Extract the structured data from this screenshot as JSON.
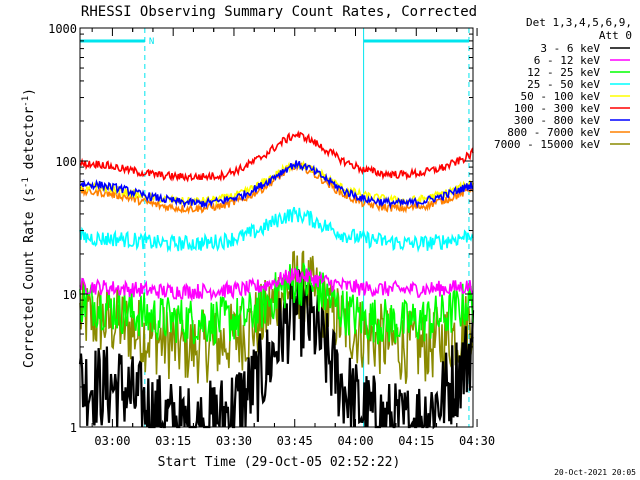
{
  "chart_data": {
    "type": "line",
    "title": "RHESSI Observing Summary Count Rates, Corrected",
    "xlabel": "Start Time (29-Oct-05 02:52:22)",
    "ylabel_main": "Corrected Count Rate (s",
    "ylabel_sup1": "-1",
    "ylabel_mid": " detector",
    "ylabel_sup2": "-1",
    "ylabel_end": ")",
    "yscale": "log",
    "ylim": [
      1,
      1000
    ],
    "xlim_min": [
      0,
      97
    ],
    "yticks": [
      "1",
      "10",
      "100",
      "1000"
    ],
    "xticks": [
      {
        "label": "03:00",
        "min": 8
      },
      {
        "label": "03:15",
        "min": 23
      },
      {
        "label": "03:30",
        "min": 38
      },
      {
        "label": "03:45",
        "min": 53
      },
      {
        "label": "04:00",
        "min": 68
      },
      {
        "label": "04:15",
        "min": 83
      },
      {
        "label": "04:30",
        "min": 98
      }
    ],
    "legend_header": [
      "Det 1,3,4,5,6,9,",
      "Att 0"
    ],
    "legend_position": "right",
    "annotations": {
      "night_markers": [
        {
          "start_min": 0,
          "end_min": 16
        },
        {
          "start_min": 70,
          "end_min": 96
        }
      ],
      "flag_label": "N",
      "dashed_lines_min": [
        16,
        96
      ],
      "solid_lines_min": [
        0,
        70
      ]
    },
    "series": [
      {
        "name": "3 - 6 keV",
        "color": "#000000",
        "x": [
          0,
          5,
          10,
          15,
          20,
          25,
          30,
          35,
          40,
          45,
          48,
          50,
          53,
          55,
          58,
          60,
          63,
          65,
          70,
          75,
          80,
          85,
          90,
          95,
          97
        ],
        "y": [
          2.2,
          2.0,
          2.0,
          1.5,
          1.2,
          1.0,
          1.0,
          1.2,
          1.6,
          2.5,
          3.8,
          5.5,
          7.5,
          7.0,
          5.5,
          4.0,
          2.6,
          2.0,
          1.3,
          1.1,
          1.0,
          1.2,
          1.8,
          3.0,
          4.5
        ]
      },
      {
        "name": "6 - 12 keV",
        "color": "#ff00ff",
        "x": [
          0,
          10,
          20,
          30,
          40,
          45,
          50,
          53,
          56,
          60,
          65,
          70,
          80,
          90,
          97
        ],
        "y": [
          11.5,
          11.0,
          10.5,
          10.5,
          10.8,
          11.5,
          13.0,
          14.0,
          13.5,
          12.5,
          11.5,
          11.0,
          10.8,
          11.0,
          11.5
        ]
      },
      {
        "name": "12 - 25 keV",
        "color": "#00ff00",
        "x": [
          0,
          10,
          20,
          30,
          40,
          45,
          50,
          53,
          56,
          60,
          65,
          70,
          80,
          90,
          97
        ],
        "y": [
          9.0,
          7.5,
          6.5,
          6.2,
          6.5,
          8.0,
          11.0,
          12.5,
          12.0,
          10.0,
          7.5,
          6.5,
          6.0,
          6.8,
          9.0
        ]
      },
      {
        "name": "25 - 50 keV",
        "color": "#00ffff",
        "x": [
          0,
          5,
          10,
          15,
          20,
          25,
          30,
          35,
          40,
          45,
          50,
          53,
          56,
          60,
          65,
          70,
          75,
          80,
          85,
          90,
          95,
          97
        ],
        "y": [
          27,
          26,
          26,
          25,
          24,
          24,
          24,
          25,
          27,
          31,
          38,
          40,
          38,
          33,
          28,
          26,
          25,
          24,
          24,
          25,
          27,
          29
        ]
      },
      {
        "name": "50 - 100 keV",
        "color": "#ffff00",
        "x": [
          0,
          5,
          10,
          15,
          20,
          25,
          30,
          35,
          40,
          45,
          50,
          53,
          56,
          60,
          65,
          70,
          75,
          80,
          85,
          90,
          95,
          97
        ],
        "y": [
          64,
          63,
          60,
          55,
          52,
          50,
          50,
          52,
          57,
          68,
          85,
          95,
          90,
          78,
          62,
          55,
          52,
          50,
          52,
          57,
          65,
          70
        ]
      },
      {
        "name": "100 - 300 keV",
        "color": "#ff0000",
        "x": [
          0,
          5,
          10,
          15,
          20,
          25,
          30,
          35,
          40,
          45,
          50,
          53,
          56,
          60,
          65,
          70,
          75,
          80,
          85,
          90,
          95,
          97
        ],
        "y": [
          95,
          95,
          88,
          82,
          78,
          76,
          76,
          78,
          88,
          108,
          140,
          158,
          150,
          125,
          100,
          86,
          80,
          79,
          82,
          90,
          105,
          115
        ]
      },
      {
        "name": "300 - 800 keV",
        "color": "#0000ff",
        "x": [
          0,
          5,
          10,
          15,
          20,
          25,
          30,
          35,
          40,
          45,
          50,
          53,
          56,
          60,
          65,
          70,
          75,
          80,
          85,
          90,
          95,
          97
        ],
        "y": [
          67,
          66,
          62,
          56,
          52,
          49,
          48,
          50,
          55,
          66,
          84,
          95,
          90,
          76,
          60,
          52,
          49,
          48,
          50,
          55,
          63,
          67
        ]
      },
      {
        "name": "800 - 7000 keV",
        "color": "#ff8000",
        "x": [
          0,
          5,
          10,
          15,
          20,
          25,
          30,
          35,
          40,
          45,
          50,
          53,
          56,
          60,
          65,
          70,
          75,
          80,
          85,
          90,
          95,
          97
        ],
        "y": [
          59,
          58,
          55,
          50,
          46,
          44,
          44,
          46,
          51,
          62,
          80,
          92,
          87,
          72,
          56,
          48,
          45,
          44,
          46,
          51,
          58,
          64
        ]
      },
      {
        "name": "7000 - 15000 keV",
        "color": "#8a8a00",
        "x": [
          0,
          5,
          10,
          15,
          20,
          25,
          30,
          35,
          40,
          45,
          48,
          50,
          53,
          55,
          58,
          60,
          65,
          70,
          75,
          80,
          85,
          90,
          95,
          97
        ],
        "y": [
          7.0,
          6.3,
          6.0,
          5.0,
          4.5,
          4.0,
          4.0,
          4.3,
          5.0,
          6.5,
          8.5,
          10.5,
          12.0,
          11.5,
          10.0,
          8.0,
          6.0,
          5.0,
          4.4,
          4.0,
          4.0,
          4.5,
          5.5,
          7.0
        ]
      }
    ],
    "footer_timestamp": "20-Oct-2021 20:05"
  }
}
